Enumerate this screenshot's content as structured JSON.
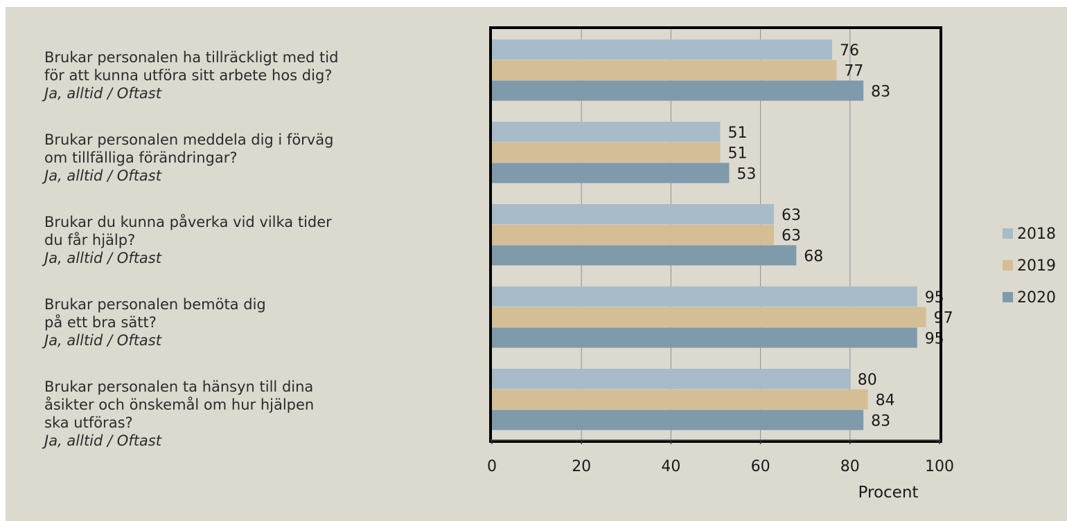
{
  "chart_data": {
    "type": "bar",
    "orientation": "horizontal",
    "categories": [
      {
        "text": "Brukar personalen ha tillräckligt med tid\nför att kunna utföra sitt arbete hos dig?",
        "answer": "Ja, alltid / Oftast"
      },
      {
        "text": "Brukar personalen meddela dig i förväg\nom tillfälliga förändringar?",
        "answer": "Ja, alltid / Oftast"
      },
      {
        "text": "Brukar du kunna påverka vid vilka tider\ndu får hjälp?",
        "answer": "Ja, alltid / Oftast"
      },
      {
        "text": "Brukar personalen bemöta dig\npå ett bra sätt?",
        "answer": "Ja, alltid / Oftast"
      },
      {
        "text": "Brukar personalen ta hänsyn till dina\nåsikter och önskemål om hur hjälpen\nska utföras?",
        "answer": "Ja, alltid / Oftast"
      }
    ],
    "series": [
      {
        "name": "2018",
        "color": "#a7bcc8",
        "values": [
          76,
          51,
          63,
          95,
          80
        ]
      },
      {
        "name": "2019",
        "color": "#d4be96",
        "values": [
          77,
          51,
          63,
          97,
          84
        ]
      },
      {
        "name": "2020",
        "color": "#7f9aab",
        "values": [
          83,
          53,
          68,
          95,
          83
        ]
      }
    ],
    "xlabel": "Procent",
    "xlim": [
      0,
      100
    ],
    "xticks": [
      0,
      20,
      40,
      60,
      80,
      100
    ],
    "grid": true,
    "legend_position": "right"
  }
}
